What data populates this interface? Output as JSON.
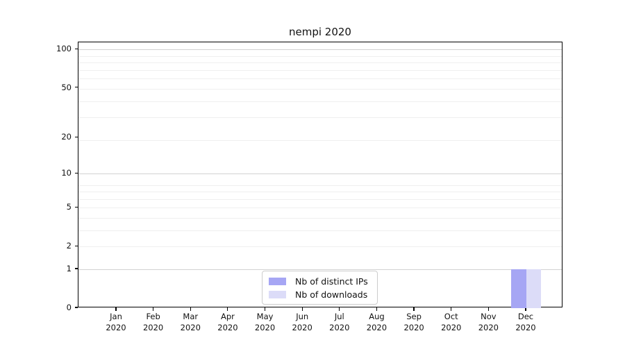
{
  "chart_data": {
    "type": "bar",
    "title": "nempi 2020",
    "categories": [
      "Jan 2020",
      "Feb 2020",
      "Mar 2020",
      "Apr 2020",
      "May 2020",
      "Jun 2020",
      "Jul 2020",
      "Aug 2020",
      "Sep 2020",
      "Oct 2020",
      "Nov 2020",
      "Dec 2020"
    ],
    "series": [
      {
        "name": "Nb of distinct IPs",
        "color": "#a6a6f4",
        "values": [
          0,
          0,
          0,
          0,
          0,
          0,
          0,
          0,
          0,
          0,
          0,
          1
        ]
      },
      {
        "name": "Nb of downloads",
        "color": "#dcdcf8",
        "values": [
          0,
          0,
          0,
          0,
          0,
          0,
          0,
          0,
          0,
          0,
          0,
          1
        ]
      }
    ],
    "xlabel": "",
    "ylabel": "",
    "y_scale": "log1p",
    "ylim": [
      0,
      113
    ],
    "y_ticks": [
      0,
      1,
      2,
      5,
      10,
      20,
      50,
      100
    ],
    "y_major_gridlines": [
      1,
      10,
      100
    ],
    "y_minor_gridlines": [
      2,
      3,
      4,
      5,
      6,
      7,
      8,
      19,
      29,
      39,
      49,
      59,
      69,
      79,
      89
    ],
    "grid": true,
    "legend_position": "lower center"
  },
  "colors": {
    "grid_major": "#d2d2d2",
    "grid_minor": "#efefef",
    "spine": "#000000",
    "legend_border": "#cccccc",
    "text": "#111111"
  }
}
